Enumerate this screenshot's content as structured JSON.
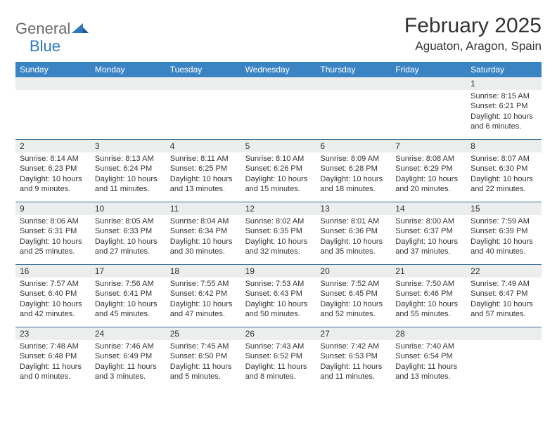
{
  "logo": {
    "part1": "General",
    "part2": "Blue",
    "color1": "#6a6a6a",
    "color2": "#2d78bc"
  },
  "title": "February 2025",
  "location": "Aguaton, Aragon, Spain",
  "colors": {
    "header_bg": "#3b84c4",
    "header_text": "#ffffff",
    "band_bg": "#eceded",
    "rule": "#3b6fa0",
    "text": "#333333"
  },
  "weekdays": [
    "Sunday",
    "Monday",
    "Tuesday",
    "Wednesday",
    "Thursday",
    "Friday",
    "Saturday"
  ],
  "weeks": [
    [
      {
        "n": "",
        "sunrise": "",
        "sunset": "",
        "daylight": ""
      },
      {
        "n": "",
        "sunrise": "",
        "sunset": "",
        "daylight": ""
      },
      {
        "n": "",
        "sunrise": "",
        "sunset": "",
        "daylight": ""
      },
      {
        "n": "",
        "sunrise": "",
        "sunset": "",
        "daylight": ""
      },
      {
        "n": "",
        "sunrise": "",
        "sunset": "",
        "daylight": ""
      },
      {
        "n": "",
        "sunrise": "",
        "sunset": "",
        "daylight": ""
      },
      {
        "n": "1",
        "sunrise": "Sunrise: 8:15 AM",
        "sunset": "Sunset: 6:21 PM",
        "daylight": "Daylight: 10 hours and 6 minutes."
      }
    ],
    [
      {
        "n": "2",
        "sunrise": "Sunrise: 8:14 AM",
        "sunset": "Sunset: 6:23 PM",
        "daylight": "Daylight: 10 hours and 9 minutes."
      },
      {
        "n": "3",
        "sunrise": "Sunrise: 8:13 AM",
        "sunset": "Sunset: 6:24 PM",
        "daylight": "Daylight: 10 hours and 11 minutes."
      },
      {
        "n": "4",
        "sunrise": "Sunrise: 8:11 AM",
        "sunset": "Sunset: 6:25 PM",
        "daylight": "Daylight: 10 hours and 13 minutes."
      },
      {
        "n": "5",
        "sunrise": "Sunrise: 8:10 AM",
        "sunset": "Sunset: 6:26 PM",
        "daylight": "Daylight: 10 hours and 15 minutes."
      },
      {
        "n": "6",
        "sunrise": "Sunrise: 8:09 AM",
        "sunset": "Sunset: 6:28 PM",
        "daylight": "Daylight: 10 hours and 18 minutes."
      },
      {
        "n": "7",
        "sunrise": "Sunrise: 8:08 AM",
        "sunset": "Sunset: 6:29 PM",
        "daylight": "Daylight: 10 hours and 20 minutes."
      },
      {
        "n": "8",
        "sunrise": "Sunrise: 8:07 AM",
        "sunset": "Sunset: 6:30 PM",
        "daylight": "Daylight: 10 hours and 22 minutes."
      }
    ],
    [
      {
        "n": "9",
        "sunrise": "Sunrise: 8:06 AM",
        "sunset": "Sunset: 6:31 PM",
        "daylight": "Daylight: 10 hours and 25 minutes."
      },
      {
        "n": "10",
        "sunrise": "Sunrise: 8:05 AM",
        "sunset": "Sunset: 6:33 PM",
        "daylight": "Daylight: 10 hours and 27 minutes."
      },
      {
        "n": "11",
        "sunrise": "Sunrise: 8:04 AM",
        "sunset": "Sunset: 6:34 PM",
        "daylight": "Daylight: 10 hours and 30 minutes."
      },
      {
        "n": "12",
        "sunrise": "Sunrise: 8:02 AM",
        "sunset": "Sunset: 6:35 PM",
        "daylight": "Daylight: 10 hours and 32 minutes."
      },
      {
        "n": "13",
        "sunrise": "Sunrise: 8:01 AM",
        "sunset": "Sunset: 6:36 PM",
        "daylight": "Daylight: 10 hours and 35 minutes."
      },
      {
        "n": "14",
        "sunrise": "Sunrise: 8:00 AM",
        "sunset": "Sunset: 6:37 PM",
        "daylight": "Daylight: 10 hours and 37 minutes."
      },
      {
        "n": "15",
        "sunrise": "Sunrise: 7:59 AM",
        "sunset": "Sunset: 6:39 PM",
        "daylight": "Daylight: 10 hours and 40 minutes."
      }
    ],
    [
      {
        "n": "16",
        "sunrise": "Sunrise: 7:57 AM",
        "sunset": "Sunset: 6:40 PM",
        "daylight": "Daylight: 10 hours and 42 minutes."
      },
      {
        "n": "17",
        "sunrise": "Sunrise: 7:56 AM",
        "sunset": "Sunset: 6:41 PM",
        "daylight": "Daylight: 10 hours and 45 minutes."
      },
      {
        "n": "18",
        "sunrise": "Sunrise: 7:55 AM",
        "sunset": "Sunset: 6:42 PM",
        "daylight": "Daylight: 10 hours and 47 minutes."
      },
      {
        "n": "19",
        "sunrise": "Sunrise: 7:53 AM",
        "sunset": "Sunset: 6:43 PM",
        "daylight": "Daylight: 10 hours and 50 minutes."
      },
      {
        "n": "20",
        "sunrise": "Sunrise: 7:52 AM",
        "sunset": "Sunset: 6:45 PM",
        "daylight": "Daylight: 10 hours and 52 minutes."
      },
      {
        "n": "21",
        "sunrise": "Sunrise: 7:50 AM",
        "sunset": "Sunset: 6:46 PM",
        "daylight": "Daylight: 10 hours and 55 minutes."
      },
      {
        "n": "22",
        "sunrise": "Sunrise: 7:49 AM",
        "sunset": "Sunset: 6:47 PM",
        "daylight": "Daylight: 10 hours and 57 minutes."
      }
    ],
    [
      {
        "n": "23",
        "sunrise": "Sunrise: 7:48 AM",
        "sunset": "Sunset: 6:48 PM",
        "daylight": "Daylight: 11 hours and 0 minutes."
      },
      {
        "n": "24",
        "sunrise": "Sunrise: 7:46 AM",
        "sunset": "Sunset: 6:49 PM",
        "daylight": "Daylight: 11 hours and 3 minutes."
      },
      {
        "n": "25",
        "sunrise": "Sunrise: 7:45 AM",
        "sunset": "Sunset: 6:50 PM",
        "daylight": "Daylight: 11 hours and 5 minutes."
      },
      {
        "n": "26",
        "sunrise": "Sunrise: 7:43 AM",
        "sunset": "Sunset: 6:52 PM",
        "daylight": "Daylight: 11 hours and 8 minutes."
      },
      {
        "n": "27",
        "sunrise": "Sunrise: 7:42 AM",
        "sunset": "Sunset: 6:53 PM",
        "daylight": "Daylight: 11 hours and 11 minutes."
      },
      {
        "n": "28",
        "sunrise": "Sunrise: 7:40 AM",
        "sunset": "Sunset: 6:54 PM",
        "daylight": "Daylight: 11 hours and 13 minutes."
      },
      {
        "n": "",
        "sunrise": "",
        "sunset": "",
        "daylight": ""
      }
    ]
  ]
}
